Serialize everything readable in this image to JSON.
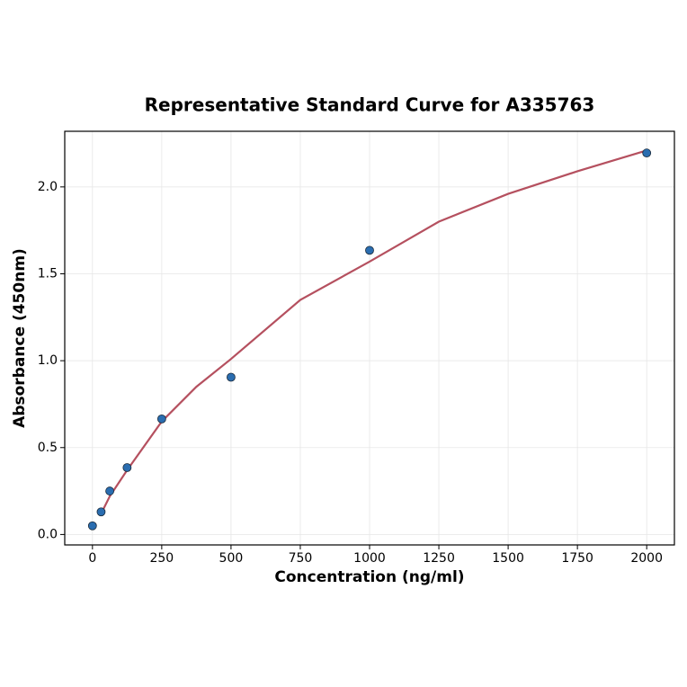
{
  "chart_data": {
    "type": "scatter",
    "title": "Representative Standard Curve for A335763",
    "x_label": "Concentration (ng/ml)",
    "y_label": "Absorbance (450nm)",
    "xlim": [
      -100,
      2100
    ],
    "ylim": [
      -0.06,
      2.32
    ],
    "xticks": [
      0,
      250,
      500,
      750,
      1000,
      1250,
      1500,
      1750,
      2000
    ],
    "yticks": [
      {
        "value": 0,
        "label": "0.0"
      },
      0.5,
      {
        "value": 1,
        "label": "1.0"
      },
      1.5,
      {
        "value": 2,
        "label": "2.0"
      }
    ],
    "grid": true,
    "series": [
      {
        "type": "line",
        "color": "#b5505f",
        "x": [
          31.25,
          62.5,
          125,
          250,
          375,
          500,
          750,
          1000,
          1250,
          1500,
          1750,
          2000
        ],
        "values": [
          0.12,
          0.22,
          0.37,
          0.65,
          0.85,
          1.01,
          1.35,
          1.57,
          1.8,
          1.96,
          2.09,
          2.21
        ]
      },
      {
        "type": "scatter",
        "color": "#2a6db0",
        "x": [
          0,
          31.25,
          62.5,
          125,
          250,
          500,
          1000,
          2000
        ],
        "values": [
          0.05,
          0.13,
          0.25,
          0.385,
          0.665,
          0.905,
          1.635,
          2.195
        ]
      }
    ]
  }
}
